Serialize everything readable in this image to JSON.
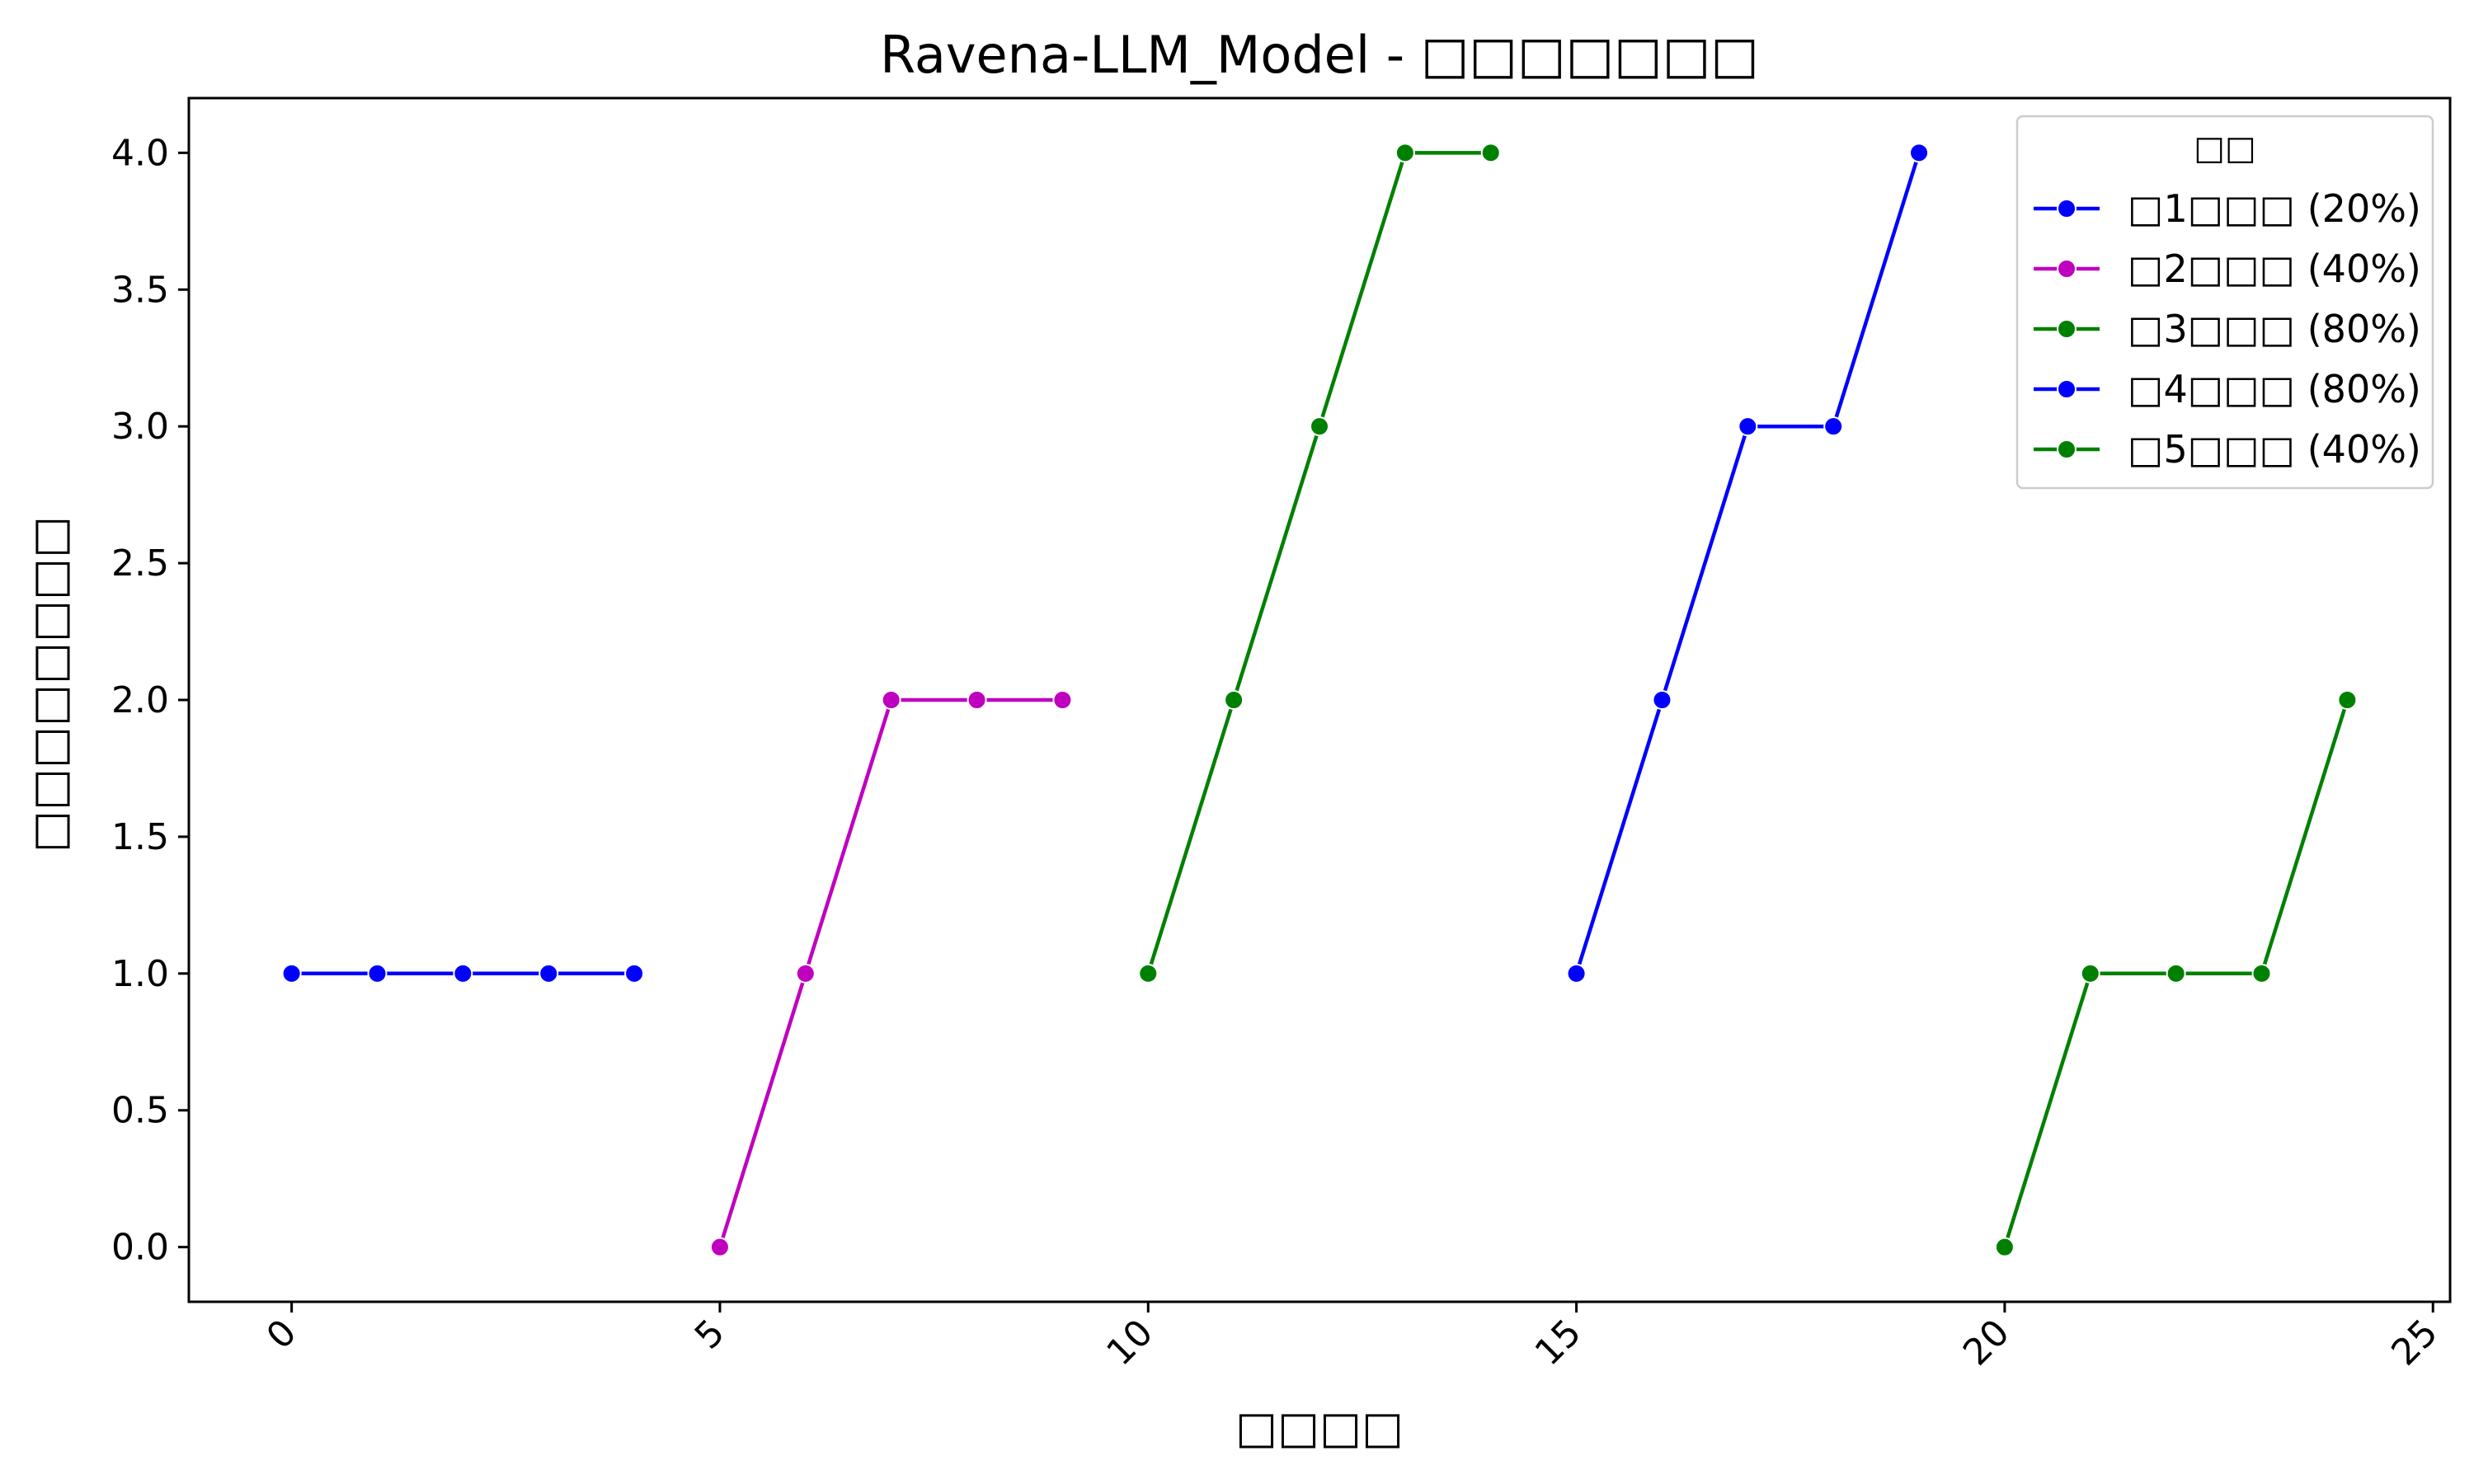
{
  "chart_data": {
    "type": "line",
    "title": "Ravena-LLM_Model - □□□□□□□",
    "xlabel": "□□□□",
    "ylabel": "□□□□□□□□",
    "xlim": [
      -1.2,
      25.2
    ],
    "ylim": [
      -0.2,
      4.2
    ],
    "x_ticks": [
      0,
      5,
      10,
      15,
      20,
      25
    ],
    "y_ticks": [
      0.0,
      0.5,
      1.0,
      1.5,
      2.0,
      2.5,
      3.0,
      3.5,
      4.0
    ],
    "grid": false,
    "legend": {
      "title": "□□",
      "position": "top-right"
    },
    "series": [
      {
        "name": "□1□□□ (20%)",
        "color": "#0000ff",
        "x": [
          0,
          1,
          2,
          3,
          4
        ],
        "y": [
          1,
          1,
          1,
          1,
          1
        ]
      },
      {
        "name": "□2□□□ (40%)",
        "color": "#bf00bf",
        "x": [
          5,
          6,
          7,
          8,
          9
        ],
        "y": [
          0,
          1,
          2,
          2,
          2
        ]
      },
      {
        "name": "□3□□□ (80%)",
        "color": "#008000",
        "x": [
          10,
          11,
          12,
          13,
          14
        ],
        "y": [
          1,
          2,
          3,
          4,
          4
        ]
      },
      {
        "name": "□4□□□ (80%)",
        "color": "#0000ff",
        "x": [
          15,
          16,
          17,
          18,
          19
        ],
        "y": [
          1,
          2,
          3,
          3,
          4
        ]
      },
      {
        "name": "□5□□□ (40%)",
        "color": "#008000",
        "x": [
          20,
          21,
          22,
          23,
          24
        ],
        "y": [
          0,
          1,
          1,
          1,
          2
        ]
      }
    ]
  }
}
